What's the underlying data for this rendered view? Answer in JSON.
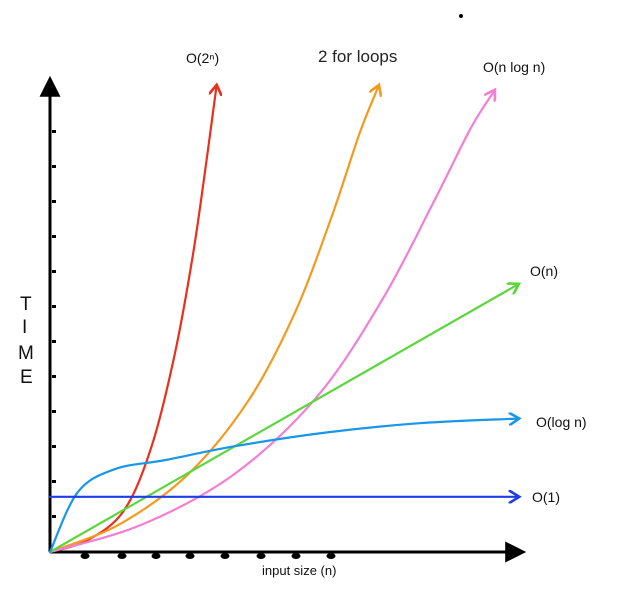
{
  "chart_data": {
    "type": "line",
    "title": "2 for loops",
    "xlabel": "input size (n)",
    "ylabel": "TIME",
    "ylabel_letters": [
      "T",
      "I",
      "M",
      "E"
    ],
    "x_range": [
      0,
      10
    ],
    "y_range": [
      0,
      10
    ],
    "grid": false,
    "legend": "none",
    "series": [
      {
        "name": "O(2ⁿ)",
        "color": "#e8301c",
        "points": [
          [
            0,
            0
          ],
          [
            0.8,
            0.25
          ],
          [
            1.6,
            0.9
          ],
          [
            2.2,
            2.3
          ],
          [
            2.7,
            4.3
          ],
          [
            3.1,
            6.5
          ],
          [
            3.4,
            8.6
          ],
          [
            3.6,
            10.1
          ]
        ]
      },
      {
        "name": "2 for loops",
        "color": "#f39a1e",
        "points": [
          [
            0,
            0
          ],
          [
            1.5,
            0.6
          ],
          [
            3.0,
            1.7
          ],
          [
            4.3,
            3.3
          ],
          [
            5.3,
            5.2
          ],
          [
            6.1,
            7.3
          ],
          [
            6.7,
            9.1
          ],
          [
            7.1,
            10.1
          ]
        ]
      },
      {
        "name": "O(n log n)",
        "color": "#f27fd3",
        "points": [
          [
            0,
            0
          ],
          [
            2.0,
            0.6
          ],
          [
            4.0,
            1.7
          ],
          [
            5.8,
            3.4
          ],
          [
            7.2,
            5.5
          ],
          [
            8.3,
            7.6
          ],
          [
            9.1,
            9.2
          ],
          [
            9.6,
            10.0
          ]
        ]
      },
      {
        "name": "O(n)",
        "color": "#5bd63c",
        "points": [
          [
            0,
            0
          ],
          [
            10.1,
            5.8
          ]
        ]
      },
      {
        "name": "O(log n)",
        "color": "#1a96e8",
        "points": [
          [
            0,
            0
          ],
          [
            0.6,
            1.3
          ],
          [
            1.4,
            1.8
          ],
          [
            2.5,
            2.0
          ],
          [
            4.0,
            2.3
          ],
          [
            6.0,
            2.6
          ],
          [
            8.0,
            2.8
          ],
          [
            10.1,
            2.9
          ]
        ]
      },
      {
        "name": "O(1)",
        "color": "#1c3ee8",
        "points": [
          [
            0,
            1.2
          ],
          [
            10.1,
            1.2
          ]
        ]
      }
    ]
  }
}
